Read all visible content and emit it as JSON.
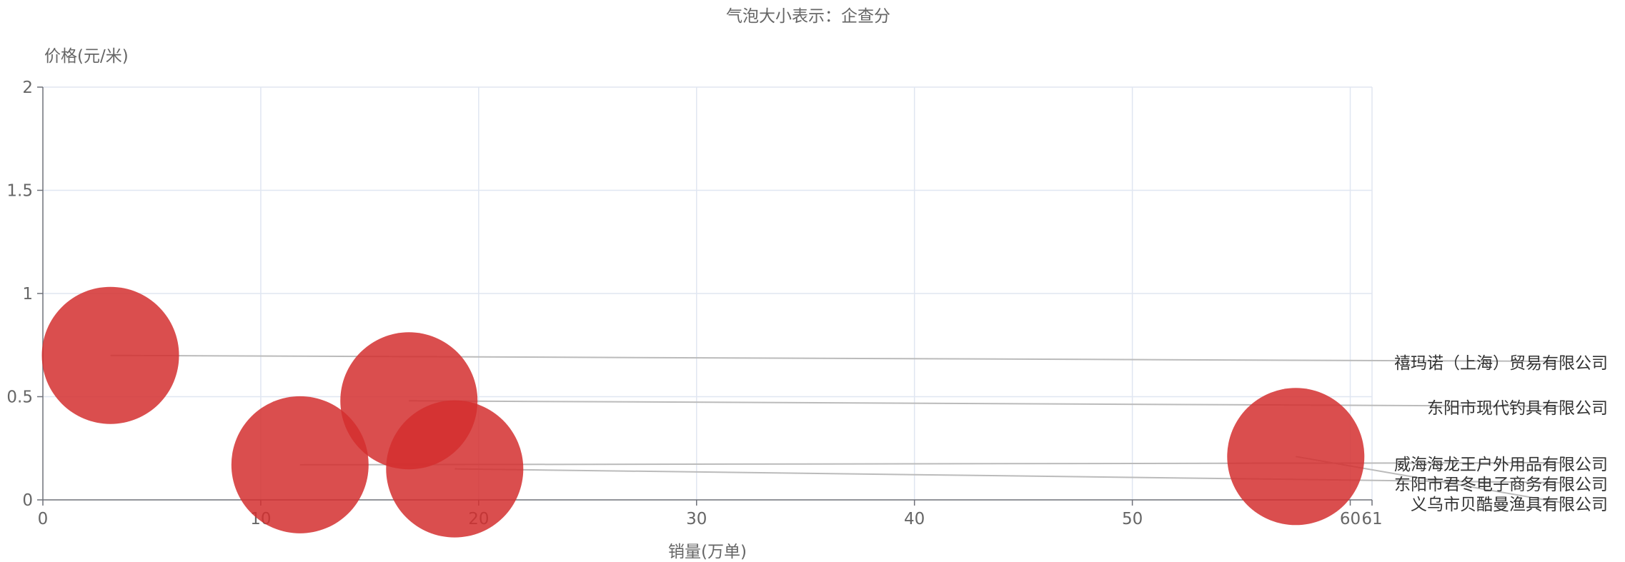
{
  "chart_data": {
    "type": "scatter",
    "title": "气泡大小表示：企查分",
    "xlabel": "销量(万单)",
    "ylabel": "价格(元/米)",
    "xlim": [
      0,
      61
    ],
    "ylim": [
      0,
      2
    ],
    "x_ticks": [
      "0",
      "10",
      "20",
      "30",
      "40",
      "50",
      "60",
      "61"
    ],
    "y_ticks": [
      "0",
      "0.5",
      "1",
      "1.5",
      "2"
    ],
    "grid": true,
    "bubble_color": "#d32f2f",
    "points": [
      {
        "label": "禧玛诺（上海）贸易有限公司",
        "x": 3.1,
        "y": 0.7
      },
      {
        "label": "东阳市现代钓具有限公司",
        "x": 16.8,
        "y": 0.48
      },
      {
        "label": "威海海龙王户外用品有限公司",
        "x": 11.8,
        "y": 0.17
      },
      {
        "label": "东阳市君冬电子商务有限公司",
        "x": 18.9,
        "y": 0.15
      },
      {
        "label": "义乌市贝酷曼渔具有限公司",
        "x": 57.5,
        "y": 0.21
      }
    ]
  }
}
